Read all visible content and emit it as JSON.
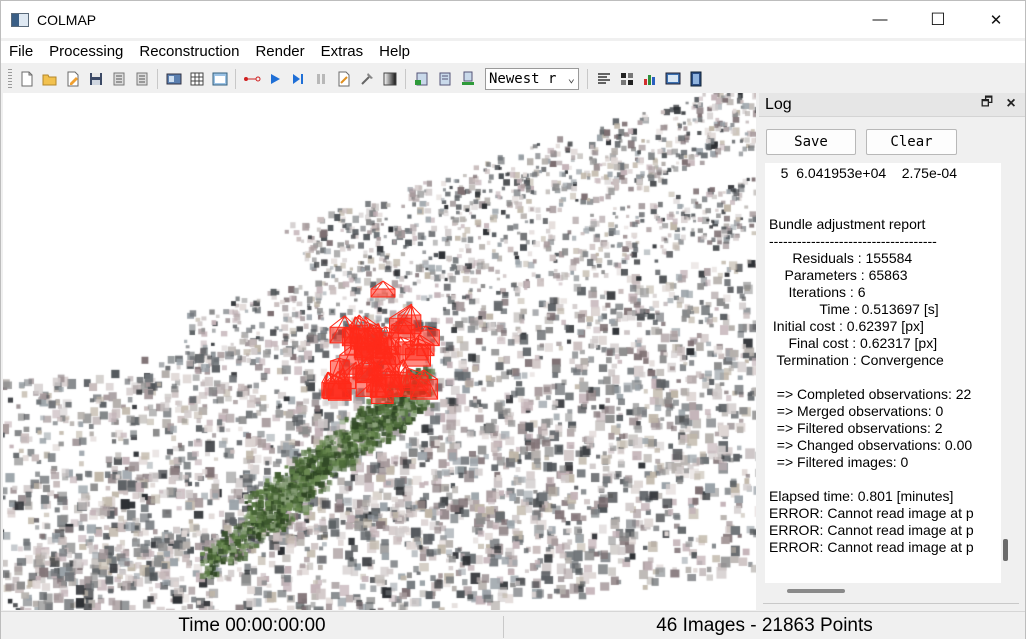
{
  "window": {
    "title": "COLMAP",
    "minimize_glyph": "—",
    "maximize_glyph": "☐",
    "close_glyph": "✕"
  },
  "menu": [
    "File",
    "Processing",
    "Reconstruction",
    "Render",
    "Extras",
    "Help"
  ],
  "toolbar": {
    "groups": [
      [
        "new-project-icon",
        "open-project-icon",
        "edit-project-icon",
        "save-project-icon",
        "import-model-icon",
        "export-model-icon"
      ],
      [
        "feature-extraction-icon",
        "feature-matching-icon",
        "database-management-icon"
      ],
      [
        "automatic-reconstruction-icon",
        "start-reconstruction-icon",
        "step-reconstruction-icon",
        "pause-reconstruction-icon",
        "reset-reconstruction-icon",
        "bundle-adjustment-icon",
        "dense-reconstruction-icon"
      ],
      [
        "render-options-icon",
        "reset-view-icon",
        "export-render-icon"
      ],
      [
        "reconstruction-stats-icon",
        "match-matrix-icon",
        "render-stats-icon",
        "log-window-icon",
        "grab-image-icon"
      ]
    ],
    "reconstruction_select": "Newest r"
  },
  "log": {
    "title": "Log",
    "save_label": "Save",
    "clear_label": "Clear",
    "lines": [
      "   5  6.041953e+04    2.75e-04",
      "",
      "",
      "Bundle adjustment report",
      "------------------------------------",
      "      Residuals : 155584",
      "    Parameters : 65863",
      "     Iterations : 6",
      "             Time : 0.513697 [s]",
      " Initial cost : 0.62397 [px]",
      "     Final cost : 0.62317 [px]",
      "  Termination : Convergence",
      "",
      "  => Completed observations: 22",
      "  => Merged observations: 0",
      "  => Filtered observations: 2",
      "  => Changed observations: 0.00",
      "  => Filtered images: 0",
      "",
      "Elapsed time: 0.801 [minutes]",
      "ERROR: Cannot read image at p",
      "ERROR: Cannot read image at p",
      "ERROR: Cannot read image at p"
    ]
  },
  "status": {
    "time": "Time 00:00:00:00",
    "summary": "46 Images - 21863 Points"
  },
  "colors": {
    "camera_frustum": "#ff2a1a",
    "dense_green": "#3e5a2e",
    "point_gray": "#8a8a8a"
  }
}
